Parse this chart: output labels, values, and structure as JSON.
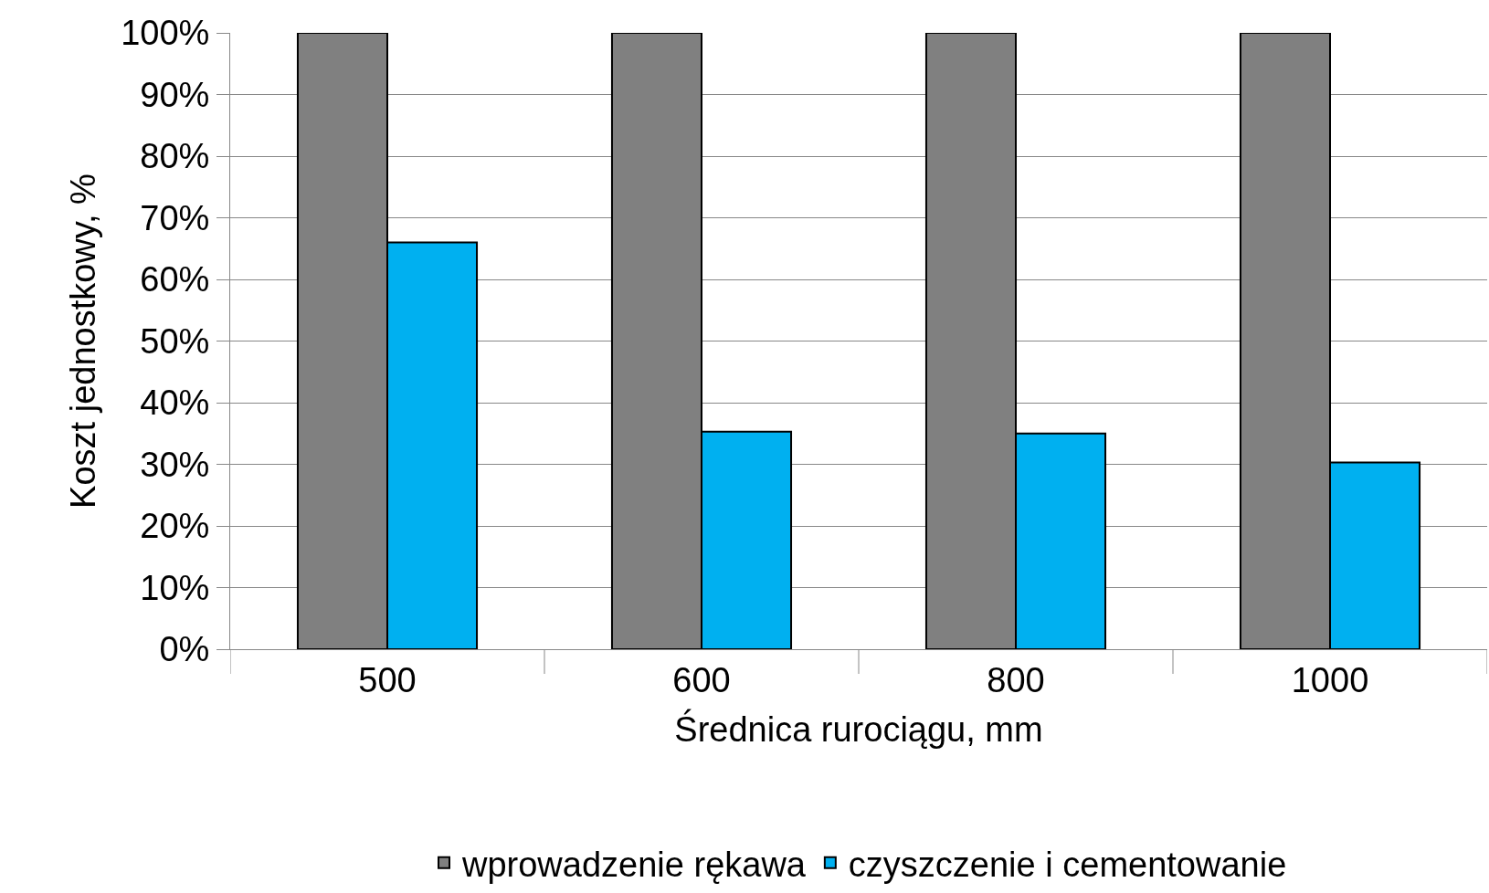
{
  "chart_data": {
    "type": "bar",
    "xlabel": "Średnica rurociągu, mm",
    "ylabel": "Koszt jednostkowy, %",
    "categories": [
      "500",
      "600",
      "800",
      "1000"
    ],
    "series": [
      {
        "name": "wprowadzenie rękawa",
        "color": "#808080",
        "values": [
          100,
          100,
          100,
          100
        ]
      },
      {
        "name": "czyszczenie i cementowanie",
        "color": "#00b0f0",
        "values": [
          66,
          35.3,
          35,
          30.3
        ]
      }
    ],
    "ylim": [
      0,
      100
    ],
    "yticks": [
      {
        "value": 0,
        "label": "0%"
      },
      {
        "value": 10,
        "label": "10%"
      },
      {
        "value": 20,
        "label": "20%"
      },
      {
        "value": 30,
        "label": "30%"
      },
      {
        "value": 40,
        "label": "40%"
      },
      {
        "value": 50,
        "label": "50%"
      },
      {
        "value": 60,
        "label": "60%"
      },
      {
        "value": 70,
        "label": "70%"
      },
      {
        "value": 80,
        "label": "80%"
      },
      {
        "value": 90,
        "label": "90%"
      },
      {
        "value": 100,
        "label": "100%"
      }
    ],
    "grid": "y",
    "legend": "bottom"
  }
}
